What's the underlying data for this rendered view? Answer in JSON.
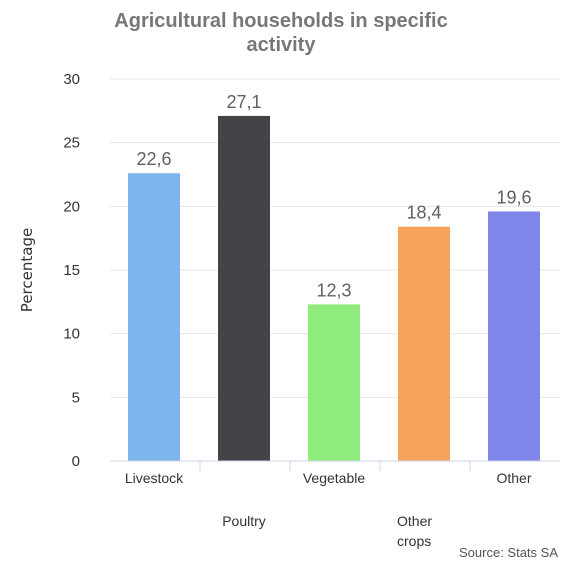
{
  "chart_data": {
    "type": "bar",
    "title_lines": [
      "Agricultural households in specific",
      "activity"
    ],
    "ylabel": "Percentage",
    "categories": [
      "Livestock",
      "Poultry",
      "Vegetable",
      "Other crops",
      "Other"
    ],
    "category_lines": [
      [
        "Livestock"
      ],
      [
        "Poultry"
      ],
      [
        "Vegetable"
      ],
      [
        "Other",
        "crops"
      ],
      [
        "Other"
      ]
    ],
    "values": [
      22.6,
      27.1,
      12.3,
      18.4,
      19.6
    ],
    "value_labels": [
      "22,6",
      "27,1",
      "12,3",
      "18,4",
      "19,6"
    ],
    "colors": [
      "#7cb5ec",
      "#434348",
      "#90ed7d",
      "#f7a35c",
      "#8085e9"
    ],
    "ylim": [
      0,
      30
    ],
    "yticks": [
      0,
      5,
      10,
      15,
      20,
      25,
      30
    ],
    "grid": true,
    "legend": "none",
    "source": "Source: Stats SA"
  }
}
